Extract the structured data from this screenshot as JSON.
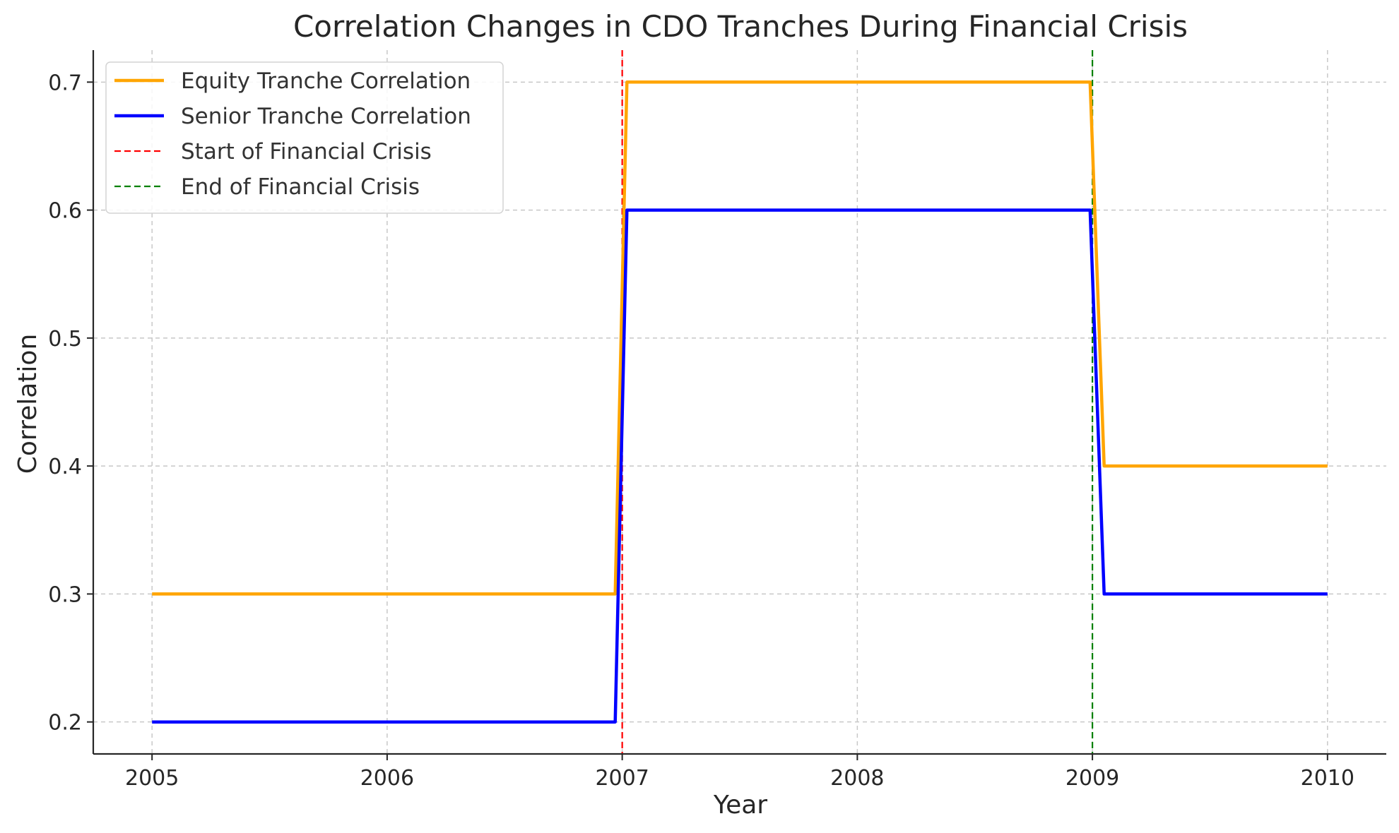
{
  "chart_data": {
    "type": "line",
    "title": "Correlation Changes in CDO Tranches During Financial Crisis",
    "xlabel": "Year",
    "ylabel": "Correlation",
    "xlim": [
      2004.75,
      2010.25
    ],
    "ylim": [
      0.175,
      0.725
    ],
    "xticks": [
      2005,
      2006,
      2007,
      2008,
      2009,
      2010
    ],
    "xtick_labels": [
      "2005",
      "2006",
      "2007",
      "2008",
      "2009",
      "2010"
    ],
    "yticks": [
      0.2,
      0.3,
      0.4,
      0.5,
      0.6,
      0.7
    ],
    "ytick_labels": [
      "0.2",
      "0.3",
      "0.4",
      "0.5",
      "0.6",
      "0.7"
    ],
    "grid": true,
    "legend_position": "top-left",
    "series": [
      {
        "name": "Equity Tranche Correlation",
        "color": "#FFA500",
        "style": "solid",
        "x": [
          2005,
          2006.97,
          2007.02,
          2008.99,
          2009.05,
          2010
        ],
        "y": [
          0.3,
          0.3,
          0.7,
          0.7,
          0.4,
          0.4
        ]
      },
      {
        "name": "Senior Tranche Correlation",
        "color": "#0000FF",
        "style": "solid",
        "x": [
          2005,
          2006.97,
          2007.02,
          2008.99,
          2009.05,
          2010
        ],
        "y": [
          0.2,
          0.2,
          0.6,
          0.6,
          0.3,
          0.3
        ]
      }
    ],
    "vlines": [
      {
        "name": "Start of Financial Crisis",
        "x": 2007,
        "color": "#FF0000",
        "style": "dashed"
      },
      {
        "name": "End of Financial Crisis",
        "x": 2009,
        "color": "#008000",
        "style": "dashed"
      }
    ]
  }
}
